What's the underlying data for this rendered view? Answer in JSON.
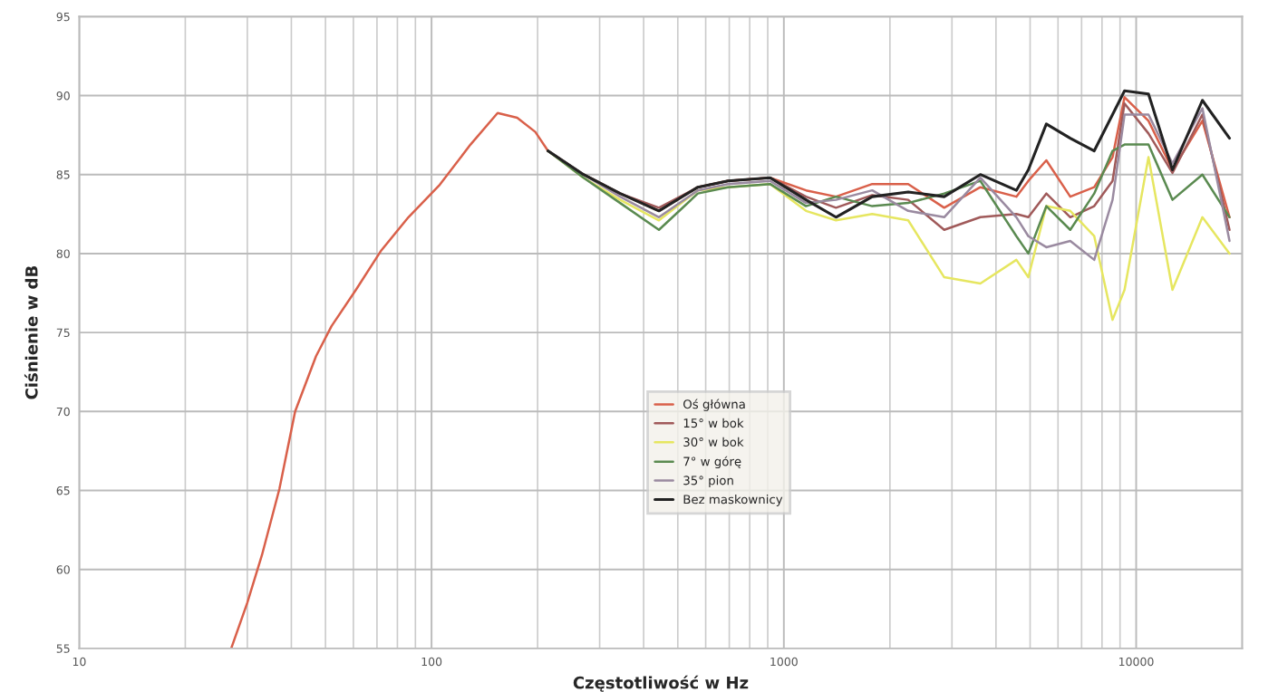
{
  "chart_data": {
    "type": "line",
    "xlabel": "Częstotliwość w Hz",
    "ylabel": "Ciśnienie w dB",
    "log": "x",
    "xlim": [
      10,
      20000
    ],
    "xticks": [
      10,
      100,
      1000,
      10000
    ],
    "ylim": [
      55,
      95
    ],
    "yticks": [
      55,
      60,
      65,
      70,
      75,
      80,
      85,
      90,
      95
    ],
    "grid": true,
    "legend": "center",
    "line_style": "solid",
    "marker": "none",
    "series": [
      {
        "name": "Oś główna",
        "color": "#d9604a",
        "x": [
          27,
          30,
          33,
          37,
          41,
          47,
          52,
          61,
          72,
          86,
          105,
          129,
          154,
          175,
          197,
          214,
          270,
          343,
          442,
          570,
          694,
          914,
          1156,
          1406,
          1782,
          2254,
          2852,
          3612,
          4571,
          4943,
          5559,
          6501,
          7603,
          8570,
          9268,
          10839,
          12677,
          15417,
          18408
        ],
        "values": [
          55.0,
          57.9,
          60.9,
          65.1,
          70.0,
          73.5,
          75.4,
          77.7,
          80.2,
          82.3,
          84.3,
          86.9,
          88.9,
          88.6,
          87.7,
          86.5,
          85.0,
          83.8,
          82.7,
          84.2,
          84.6,
          84.8,
          84.0,
          83.6,
          84.4,
          84.4,
          82.9,
          84.2,
          83.6,
          84.6,
          85.9,
          83.6,
          84.2,
          86.1,
          89.9,
          88.4,
          85.3,
          88.4,
          82.3
        ]
      },
      {
        "name": "15° w bok",
        "color": "#a05a5a",
        "x": [
          214,
          270,
          343,
          442,
          570,
          694,
          914,
          1156,
          1406,
          1782,
          2254,
          2852,
          3612,
          4571,
          4943,
          5559,
          6501,
          7603,
          8570,
          9268,
          10839,
          12677,
          15417,
          18408
        ],
        "values": [
          86.5,
          85.0,
          83.8,
          82.9,
          84.2,
          84.6,
          84.8,
          83.6,
          82.9,
          83.7,
          83.4,
          81.5,
          82.3,
          82.5,
          82.3,
          83.8,
          82.3,
          83.0,
          84.6,
          89.5,
          87.6,
          85.1,
          88.8,
          81.5
        ]
      },
      {
        "name": "30° w bok",
        "color": "#e6e660",
        "x": [
          214,
          270,
          343,
          442,
          570,
          694,
          914,
          1156,
          1406,
          1782,
          2254,
          2852,
          3612,
          4571,
          4943,
          5559,
          6501,
          7603,
          8570,
          9268,
          10839,
          12677,
          15417,
          18408
        ],
        "values": [
          86.5,
          84.8,
          83.4,
          82.1,
          84.0,
          84.2,
          84.4,
          82.7,
          82.1,
          82.5,
          82.1,
          78.5,
          78.1,
          79.6,
          78.5,
          83.0,
          82.7,
          81.1,
          75.8,
          77.7,
          86.1,
          77.7,
          82.3,
          80.0
        ]
      },
      {
        "name": "7° w górę",
        "color": "#5a8a50",
        "x": [
          214,
          270,
          343,
          442,
          570,
          694,
          914,
          1156,
          1406,
          1782,
          2254,
          2852,
          3612,
          4571,
          4943,
          5559,
          6501,
          7603,
          8570,
          9268,
          10839,
          12677,
          15417,
          18408
        ],
        "values": [
          86.5,
          84.8,
          83.2,
          81.5,
          83.8,
          84.2,
          84.4,
          83.0,
          83.6,
          83.0,
          83.2,
          83.8,
          84.6,
          81.1,
          80.0,
          83.0,
          81.5,
          83.8,
          86.5,
          86.9,
          86.9,
          83.4,
          85.0,
          82.3
        ]
      },
      {
        "name": "35° pion",
        "color": "#9a8aa0",
        "x": [
          214,
          270,
          343,
          442,
          570,
          694,
          914,
          1156,
          1406,
          1782,
          2254,
          2852,
          3612,
          4571,
          4943,
          5559,
          6501,
          7603,
          8570,
          9268,
          10839,
          12677,
          15417,
          18408
        ],
        "values": [
          86.5,
          85.0,
          83.6,
          82.3,
          84.0,
          84.4,
          84.6,
          83.2,
          83.4,
          84.0,
          82.7,
          82.3,
          84.8,
          82.3,
          81.1,
          80.4,
          80.8,
          79.6,
          83.4,
          88.8,
          88.8,
          85.7,
          89.2,
          80.8
        ]
      },
      {
        "name": "Bez maskownicy",
        "color": "#222222",
        "x": [
          214,
          270,
          343,
          442,
          570,
          694,
          914,
          1156,
          1406,
          1782,
          2254,
          2852,
          3612,
          4571,
          4943,
          5559,
          6501,
          7603,
          8570,
          9268,
          10839,
          12677,
          15417,
          18408
        ],
        "values": [
          86.5,
          85.0,
          83.8,
          82.7,
          84.2,
          84.6,
          84.8,
          83.4,
          82.3,
          83.6,
          83.9,
          83.6,
          85.0,
          84.0,
          85.3,
          88.2,
          87.3,
          86.5,
          88.8,
          90.3,
          90.1,
          85.3,
          89.7,
          87.3
        ]
      }
    ]
  }
}
